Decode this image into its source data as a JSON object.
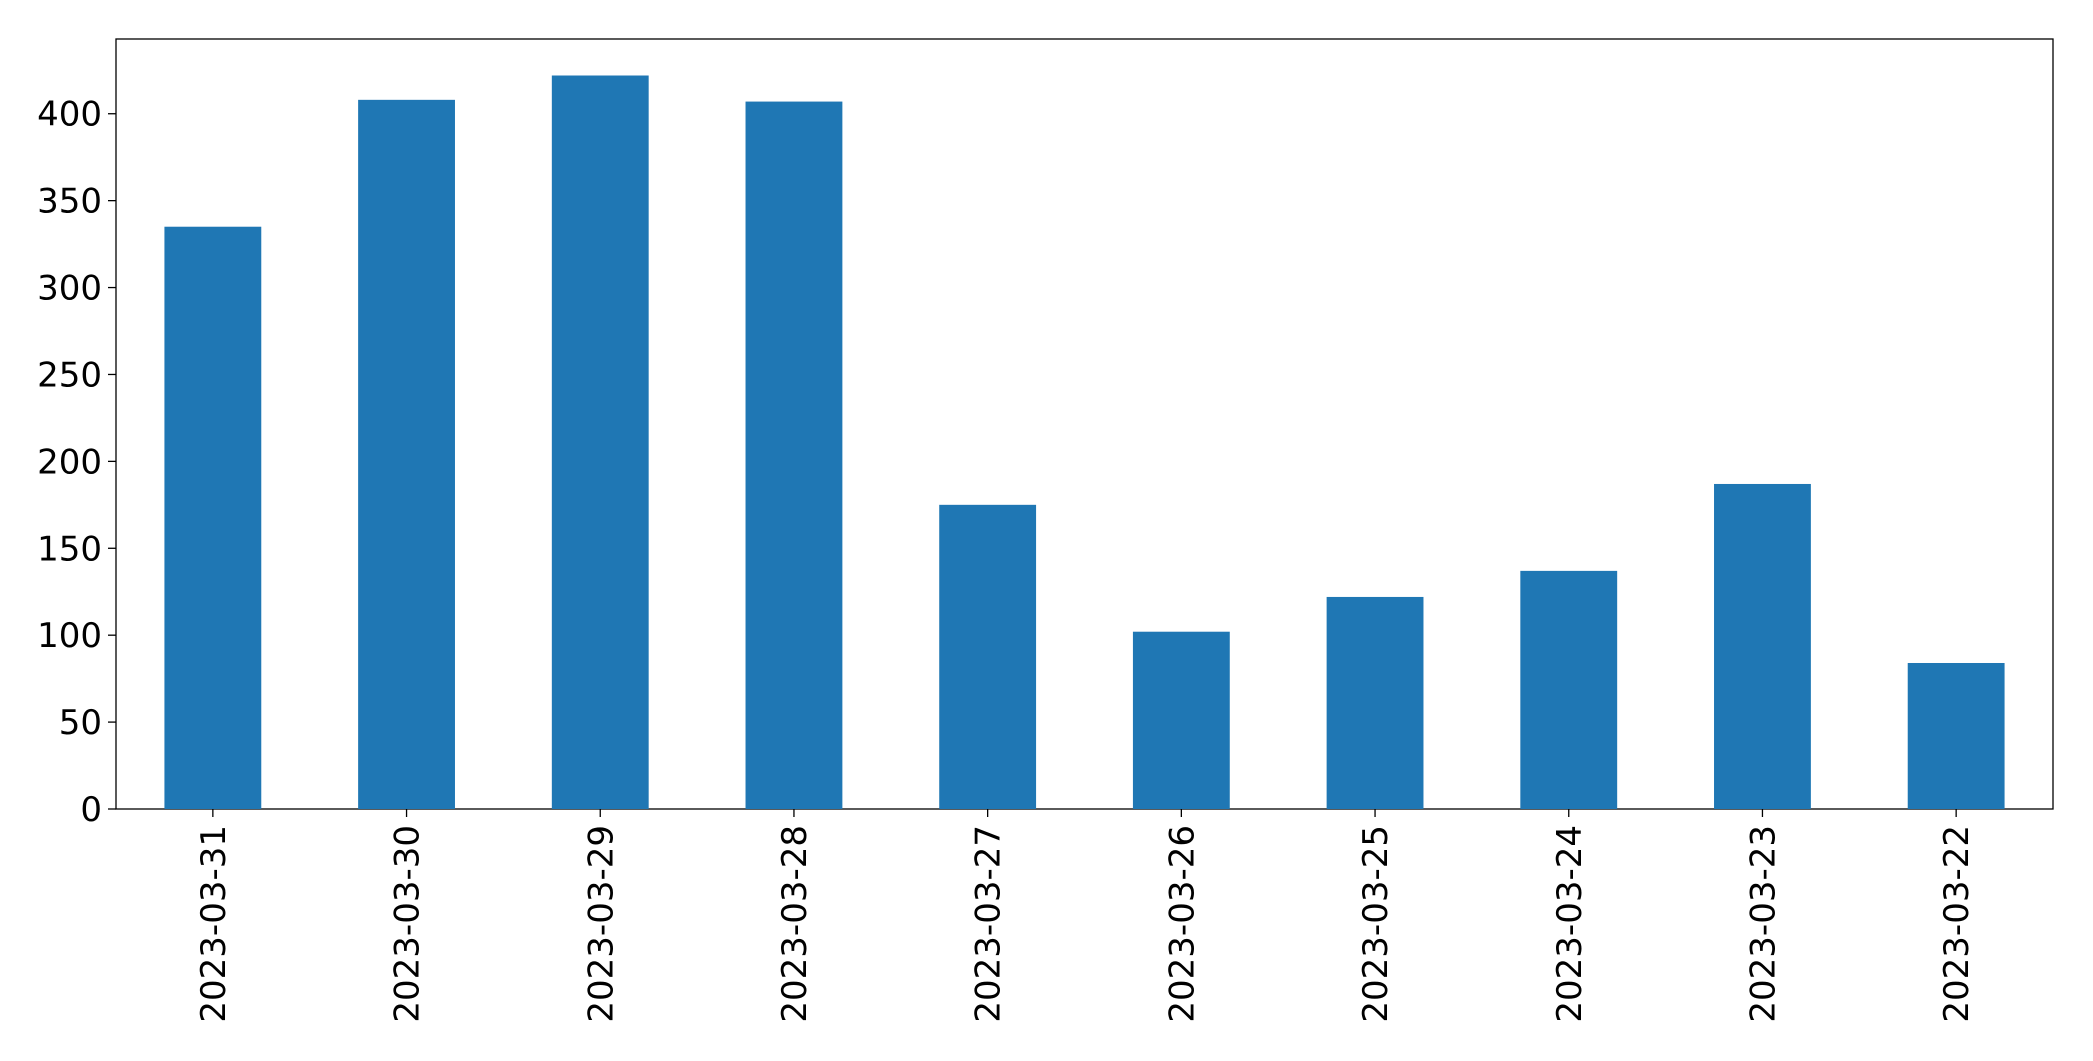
{
  "chart_data": {
    "type": "bar",
    "categories": [
      "2023-03-31",
      "2023-03-30",
      "2023-03-29",
      "2023-03-28",
      "2023-03-27",
      "2023-03-26",
      "2023-03-25",
      "2023-03-24",
      "2023-03-23",
      "2023-03-22"
    ],
    "values": [
      335,
      408,
      422,
      407,
      175,
      102,
      122,
      137,
      187,
      84
    ],
    "color": "#1f77b4",
    "ylim": [
      0,
      443
    ],
    "yticks": [
      0,
      50,
      100,
      150,
      200,
      250,
      300,
      350,
      400
    ],
    "grid": false
  }
}
